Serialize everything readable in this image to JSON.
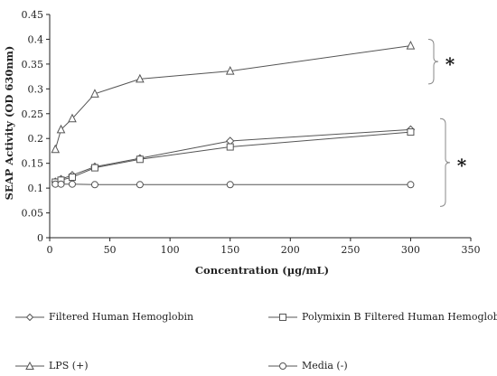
{
  "chart_data": {
    "type": "line",
    "xlabel": "Concentration (µg/mL)",
    "ylabel": "SEAP Activity (OD 630nm)",
    "xlim": [
      0,
      350
    ],
    "ylim": [
      0,
      0.45
    ],
    "xticks": [
      "0",
      "50",
      "100",
      "150",
      "200",
      "250",
      "300",
      "350"
    ],
    "yticks": [
      "0",
      "0.05",
      "0.1",
      "0.15",
      "0.2",
      "0.25",
      "0.3",
      "0.35",
      "0.4",
      "0.45"
    ],
    "grid": false,
    "legend_position": "bottom",
    "series": [
      {
        "name": "Filtered Human Hemoglobin",
        "marker": "diamond",
        "x": [
          4.7,
          9.4,
          18.75,
          37.5,
          75,
          150,
          300
        ],
        "y": [
          0.113,
          0.118,
          0.126,
          0.143,
          0.16,
          0.195,
          0.218
        ]
      },
      {
        "name": "Polymixin B Filtered Human Hemoglobin",
        "marker": "square",
        "x": [
          4.7,
          9.4,
          18.75,
          37.5,
          75,
          150,
          300
        ],
        "y": [
          0.112,
          0.116,
          0.122,
          0.141,
          0.158,
          0.183,
          0.213
        ]
      },
      {
        "name": "LPS (+)",
        "marker": "triangle",
        "x": [
          4.7,
          9.4,
          18.75,
          37.5,
          75,
          150,
          300
        ],
        "y": [
          0.178,
          0.218,
          0.24,
          0.29,
          0.32,
          0.336,
          0.387
        ]
      },
      {
        "name": "Media (-)",
        "marker": "circle",
        "x": [
          4.7,
          9.4,
          18.75,
          37.5,
          75,
          150,
          300
        ],
        "y": [
          0.108,
          0.108,
          0.108,
          0.107,
          0.107,
          0.107,
          0.107
        ]
      }
    ],
    "annotations": [
      {
        "text": "*",
        "y_range": [
          0.31,
          0.4
        ]
      },
      {
        "text": "*",
        "y_range": [
          0.063,
          0.24
        ]
      }
    ],
    "colors": {
      "line": "#555555",
      "marker_fill": "#ffffff",
      "axis": "#222222"
    }
  }
}
